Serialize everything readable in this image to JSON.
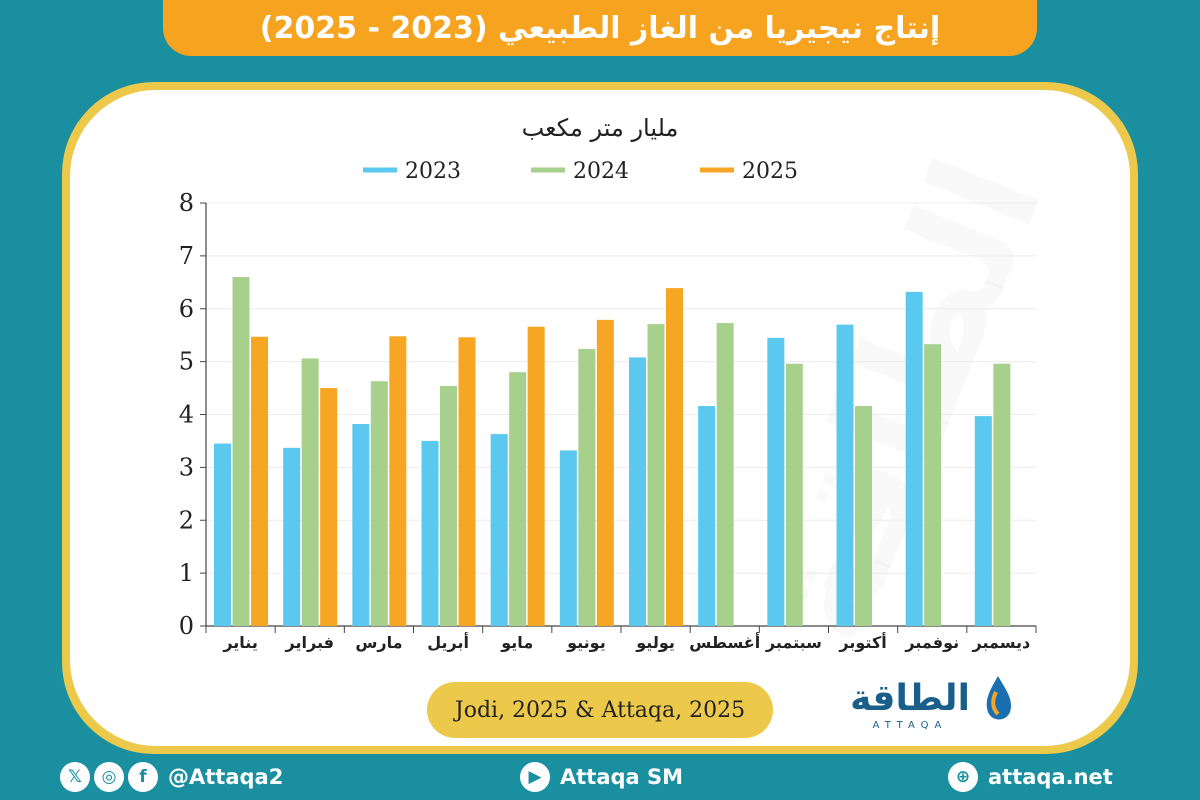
{
  "title": "إنتاج نيجيريا من الغاز الطبيعي (2023 - 2025)",
  "source": "Jodi, 2025 & Attaqa, 2025",
  "logo": {
    "arabic": "الطاقة",
    "latin": "ATTAQA"
  },
  "footer": {
    "social_icons": [
      "x-icon",
      "instagram-icon",
      "facebook-icon"
    ],
    "handle": "@Attaqa2",
    "youtube": "Attaqa SM",
    "website": "attaqa.net"
  },
  "colors": {
    "2023": "#5bc8ef",
    "2024": "#a8d08d",
    "2025": "#f6a623"
  },
  "chart_data": {
    "type": "bar",
    "title": "مليار متر مكعب",
    "categories": [
      "يناير",
      "فبراير",
      "مارس",
      "أبريل",
      "مايو",
      "يونيو",
      "يوليو",
      "أغسطس",
      "سبتمبر",
      "أكتوبر",
      "نوفمبر",
      "ديسمبر"
    ],
    "series": [
      {
        "name": "2023",
        "values": [
          3.45,
          3.37,
          3.82,
          3.5,
          3.63,
          3.32,
          5.08,
          4.16,
          5.45,
          5.7,
          6.32,
          3.97
        ]
      },
      {
        "name": "2024",
        "values": [
          6.6,
          5.06,
          4.63,
          4.54,
          4.8,
          5.24,
          5.71,
          5.73,
          4.96,
          4.16,
          5.33,
          4.96
        ]
      },
      {
        "name": "2025",
        "values": [
          5.47,
          4.5,
          5.48,
          5.46,
          5.66,
          5.79,
          6.39,
          null,
          null,
          null,
          null,
          null
        ]
      }
    ],
    "ylim": [
      0,
      8
    ],
    "yticks": [
      0,
      1,
      2,
      3,
      4,
      5,
      6,
      7,
      8
    ],
    "grid": true,
    "legend": "top"
  }
}
